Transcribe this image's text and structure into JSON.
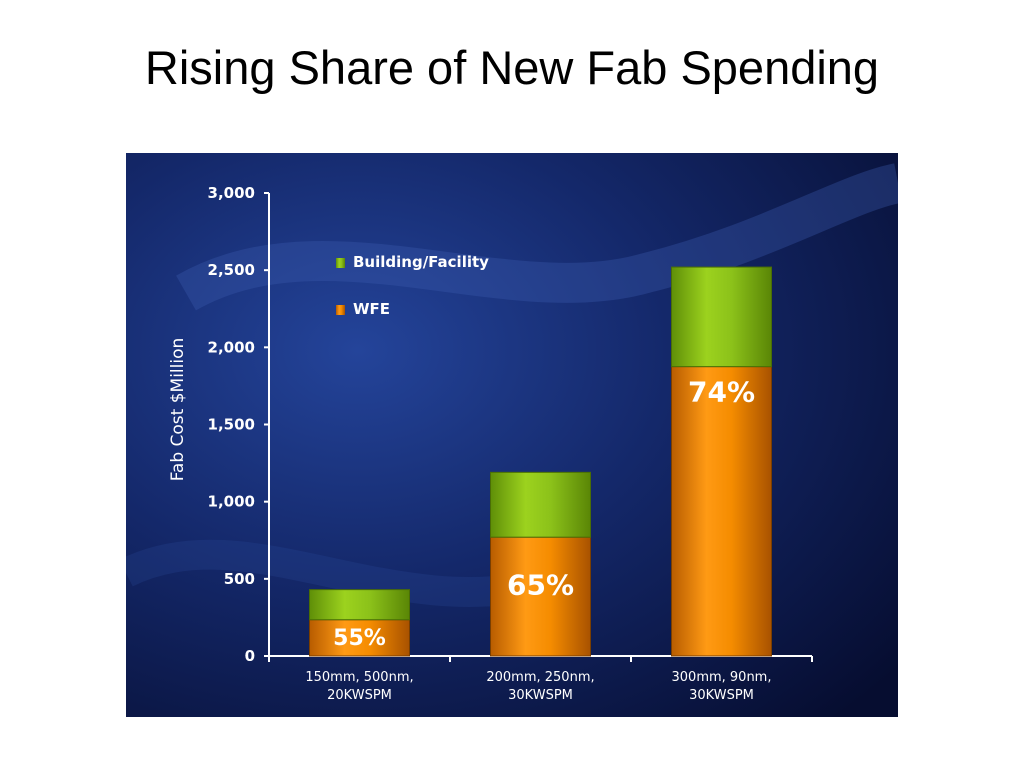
{
  "slide": {
    "title": "Rising Share of New Fab Spending"
  },
  "colors": {
    "background": "#0d1c4a",
    "wfe": "#f08a00",
    "building": "#8cc21a",
    "axis": "#ffffff",
    "text": "#ffffff"
  },
  "chart_data": {
    "type": "bar",
    "stacked": true,
    "ylabel": "Fab Cost $Million",
    "xlabel": "",
    "ylim": [
      0,
      3000
    ],
    "yticks": [
      0,
      500,
      1000,
      1500,
      2000,
      2500,
      3000
    ],
    "ytick_labels": [
      "0",
      "500",
      "1,000",
      "1,500",
      "2,000",
      "2,500",
      "3,000"
    ],
    "categories": [
      [
        "150mm, 500nm,",
        "20KWSPM"
      ],
      [
        "200mm, 250nm,",
        "30KWSPM"
      ],
      [
        "300mm, 90nm,",
        "30KWSPM"
      ]
    ],
    "series": [
      {
        "name": "WFE",
        "color": "#f08a00",
        "values": [
          235,
          770,
          1875
        ]
      },
      {
        "name": "Building/Facility",
        "color": "#8cc21a",
        "values": [
          195,
          420,
          645
        ]
      }
    ],
    "bar_labels": [
      "55%",
      "65%",
      "74%"
    ],
    "legend": {
      "placement": "top-left",
      "entries": [
        "Building/Facility",
        "WFE"
      ]
    },
    "grid": false
  }
}
